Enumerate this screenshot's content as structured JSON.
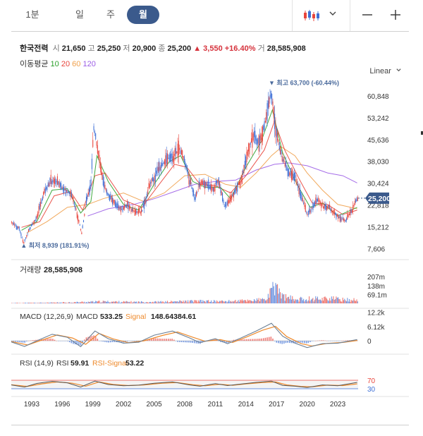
{
  "tabs": [
    {
      "label": "1분",
      "active": false
    },
    {
      "label": "일",
      "active": false
    },
    {
      "label": "주",
      "active": false
    },
    {
      "label": "월",
      "active": true
    }
  ],
  "toolbar": {
    "chart_type_icon": "candlestick-icon",
    "dropdown_icon": "chevron-down-icon",
    "zoom_out_icon": "minus-icon",
    "zoom_in_icon": "plus-icon"
  },
  "stock": {
    "name": "한국전력",
    "open_label": "시",
    "open": "21,650",
    "high_label": "고",
    "high": "25,250",
    "low_label": "저",
    "low": "20,900",
    "close_label": "종",
    "close": "25,200",
    "change": "▲ 3,550 +16.40%",
    "volume_label": "거",
    "volume": "28,585,908"
  },
  "ma_legend": {
    "label": "이동평균",
    "items": [
      {
        "period": "10",
        "color": "#2ca02c"
      },
      {
        "period": "20",
        "color": "#e8453c"
      },
      {
        "period": "60",
        "color": "#f0a04b"
      },
      {
        "period": "120",
        "color": "#9b5de5"
      }
    ]
  },
  "scale_label": "Linear",
  "colors": {
    "up": "#e8453c",
    "down": "#3d6fd6",
    "macd": "#6b7f94",
    "signal": "#ee8a2c",
    "rsi": "#555555",
    "rsi_signal": "#ee8a2c",
    "price_tag": "#3b5a8c"
  },
  "chart_data": {
    "type": "candlestick",
    "price_axis": {
      "ticks": [
        "60,848",
        "53,242",
        "45,636",
        "38,030",
        "30,424",
        "22,818",
        "15,212",
        "7,606"
      ],
      "tick_values": [
        60848,
        53242,
        45636,
        38030,
        30424,
        22818,
        15212,
        7606
      ],
      "ylim": [
        4500,
        66000
      ]
    },
    "current_price": "25,200",
    "current_value": 25200,
    "max_annotation": {
      "text": "▼ 최고 63,700 (-60.44%)",
      "value": 63700,
      "year": 2016.5
    },
    "min_annotation": {
      "text": "▲ 최저 8,939 (181.91%)",
      "value": 8939,
      "year": 1992.2
    },
    "price_path": [
      [
        1991.0,
        16800
      ],
      [
        1991.8,
        14500
      ],
      [
        1992.2,
        9500
      ],
      [
        1992.8,
        14500
      ],
      [
        1993.5,
        18500
      ],
      [
        1994.2,
        27000
      ],
      [
        1994.8,
        31000
      ],
      [
        1995.5,
        31000
      ],
      [
        1996.2,
        28000
      ],
      [
        1996.8,
        27000
      ],
      [
        1997.3,
        22000
      ],
      [
        1997.9,
        13000
      ],
      [
        1998.4,
        25000
      ],
      [
        1998.8,
        30000
      ],
      [
        1999.1,
        50000
      ],
      [
        1999.5,
        41000
      ],
      [
        1999.9,
        33000
      ],
      [
        2000.5,
        26000
      ],
      [
        2001.2,
        23000
      ],
      [
        2001.8,
        21000
      ],
      [
        2002.4,
        23000
      ],
      [
        2003.0,
        20500
      ],
      [
        2003.8,
        20500
      ],
      [
        2004.5,
        29000
      ],
      [
        2005.2,
        34000
      ],
      [
        2005.8,
        37000
      ],
      [
        2006.4,
        39000
      ],
      [
        2007.0,
        40000
      ],
      [
        2007.5,
        42500
      ],
      [
        2008.0,
        38000
      ],
      [
        2008.6,
        30000
      ],
      [
        2009.0,
        25000
      ],
      [
        2009.6,
        31000
      ],
      [
        2010.2,
        30000
      ],
      [
        2010.8,
        28000
      ],
      [
        2011.3,
        32000
      ],
      [
        2011.9,
        22000
      ],
      [
        2012.5,
        25000
      ],
      [
        2013.0,
        28000
      ],
      [
        2013.6,
        32000
      ],
      [
        2014.2,
        42000
      ],
      [
        2014.8,
        47000
      ],
      [
        2015.3,
        44000
      ],
      [
        2015.8,
        50000
      ],
      [
        2016.2,
        58000
      ],
      [
        2016.5,
        62000
      ],
      [
        2016.9,
        50000
      ],
      [
        2017.5,
        40000
      ],
      [
        2018.2,
        34000
      ],
      [
        2018.8,
        33000
      ],
      [
        2019.4,
        26000
      ],
      [
        2020.0,
        19500
      ],
      [
        2020.5,
        22000
      ],
      [
        2021.0,
        25000
      ],
      [
        2021.6,
        22000
      ],
      [
        2022.1,
        22000
      ],
      [
        2022.7,
        20000
      ],
      [
        2023.2,
        18000
      ],
      [
        2023.8,
        17500
      ],
      [
        2024.4,
        21000
      ],
      [
        2024.9,
        25200
      ]
    ],
    "ma_paths": {
      "ma10": [
        [
          1992.0,
          14000
        ],
        [
          1993.5,
          17000
        ],
        [
          1995.0,
          28000
        ],
        [
          1996.5,
          28500
        ],
        [
          1997.8,
          20000
        ],
        [
          1998.8,
          24000
        ],
        [
          1999.4,
          40000
        ],
        [
          2000.5,
          31000
        ],
        [
          2002.0,
          23000
        ],
        [
          2003.5,
          21000
        ],
        [
          2005.0,
          30000
        ],
        [
          2006.5,
          38000
        ],
        [
          2007.6,
          40000
        ],
        [
          2008.8,
          31000
        ],
        [
          2010.0,
          29000
        ],
        [
          2011.5,
          29000
        ],
        [
          2012.5,
          25000
        ],
        [
          2014.0,
          36000
        ],
        [
          2015.5,
          45000
        ],
        [
          2016.6,
          56000
        ],
        [
          2017.6,
          41000
        ],
        [
          2019.0,
          30000
        ],
        [
          2020.3,
          22000
        ],
        [
          2021.5,
          23500
        ],
        [
          2023.0,
          19000
        ],
        [
          2024.9,
          22000
        ]
      ],
      "ma20": [
        [
          1992.0,
          15000
        ],
        [
          1993.8,
          17000
        ],
        [
          1995.2,
          26000
        ],
        [
          1996.8,
          27500
        ],
        [
          1998.0,
          21000
        ],
        [
          1999.2,
          33000
        ],
        [
          2000.2,
          34000
        ],
        [
          2002.0,
          24500
        ],
        [
          2003.8,
          22000
        ],
        [
          2005.5,
          30000
        ],
        [
          2007.0,
          37000
        ],
        [
          2008.2,
          36000
        ],
        [
          2009.5,
          30000
        ],
        [
          2011.0,
          29500
        ],
        [
          2012.5,
          27000
        ],
        [
          2014.0,
          33000
        ],
        [
          2015.8,
          42000
        ],
        [
          2016.8,
          52000
        ],
        [
          2017.8,
          42000
        ],
        [
          2019.2,
          32000
        ],
        [
          2020.5,
          23500
        ],
        [
          2022.0,
          23000
        ],
        [
          2023.5,
          19500
        ],
        [
          2024.9,
          21000
        ]
      ],
      "ma60": [
        [
          1992.5,
          13000
        ],
        [
          1994.5,
          17000
        ],
        [
          1996.5,
          22000
        ],
        [
          1998.5,
          23000
        ],
        [
          2000.0,
          25000
        ],
        [
          2002.0,
          27000
        ],
        [
          2004.0,
          24000
        ],
        [
          2006.0,
          27000
        ],
        [
          2008.0,
          33000
        ],
        [
          2010.0,
          33500
        ],
        [
          2012.0,
          30000
        ],
        [
          2013.5,
          29000
        ],
        [
          2015.0,
          34000
        ],
        [
          2016.5,
          40000
        ],
        [
          2017.5,
          43000
        ],
        [
          2018.8,
          40000
        ],
        [
          2020.0,
          34000
        ],
        [
          2021.5,
          28000
        ],
        [
          2023.0,
          23000
        ],
        [
          2024.9,
          21500
        ]
      ],
      "ma120": [
        [
          1998.5,
          19000
        ],
        [
          2000.5,
          21500
        ],
        [
          2003.0,
          23000
        ],
        [
          2005.0,
          25000
        ],
        [
          2007.0,
          27500
        ],
        [
          2009.0,
          30000
        ],
        [
          2011.0,
          31000
        ],
        [
          2013.0,
          31500
        ],
        [
          2015.0,
          35000
        ],
        [
          2016.8,
          37000
        ],
        [
          2018.2,
          37500
        ],
        [
          2020.0,
          36500
        ],
        [
          2022.0,
          34000
        ],
        [
          2023.5,
          33000
        ],
        [
          2024.9,
          30500
        ]
      ]
    },
    "x_axis": {
      "labels": [
        "1993",
        "1996",
        "1999",
        "2002",
        "2005",
        "2008",
        "2011",
        "2014",
        "2017",
        "2020",
        "2023"
      ],
      "values": [
        1993,
        1996,
        1999,
        2002,
        2005,
        2008,
        2011,
        2014,
        2017,
        2020,
        2023
      ],
      "xlim": [
        1991.0,
        2025.0
      ]
    },
    "volume": {
      "label": "거래량",
      "value": "28,585,908",
      "ticks": [
        "207m",
        "138m",
        "69.1m"
      ],
      "tick_values": [
        207,
        138,
        69.1
      ],
      "ylim": [
        0,
        230
      ],
      "path": [
        [
          1991,
          3
        ],
        [
          1995,
          5
        ],
        [
          1998,
          10
        ],
        [
          2000,
          14
        ],
        [
          2003,
          11
        ],
        [
          2006,
          12
        ],
        [
          2009,
          18
        ],
        [
          2012,
          16
        ],
        [
          2014,
          22
        ],
        [
          2016,
          30
        ],
        [
          2017,
          150
        ],
        [
          2017.4,
          60
        ],
        [
          2018,
          45
        ],
        [
          2019,
          30
        ],
        [
          2020,
          35
        ],
        [
          2022,
          40
        ],
        [
          2023.6,
          28
        ],
        [
          2024.9,
          28
        ]
      ]
    },
    "macd": {
      "label": "MACD (12,26,9)",
      "macd_label": "MACD",
      "macd_value": "533.25",
      "signal_label": "Signal",
      "signal_value": "148.64384.61",
      "ticks": [
        "12.2k",
        "6.12k",
        "0"
      ],
      "tick_values": [
        12200,
        6120,
        0
      ],
      "ylim": [
        -4200,
        13000
      ],
      "macd_path": [
        [
          1991,
          -500
        ],
        [
          1992.3,
          -2400
        ],
        [
          1993.5,
          0
        ],
        [
          1995,
          2800
        ],
        [
          1996.5,
          1500
        ],
        [
          1997.8,
          -2500
        ],
        [
          1999.2,
          4200
        ],
        [
          2000.5,
          900
        ],
        [
          2002,
          -1000
        ],
        [
          2003.5,
          -600
        ],
        [
          2005,
          2400
        ],
        [
          2006.8,
          4200
        ],
        [
          2008.5,
          1200
        ],
        [
          2009.5,
          -800
        ],
        [
          2011,
          900
        ],
        [
          2012.2,
          -1200
        ],
        [
          2013.5,
          1200
        ],
        [
          2015,
          4200
        ],
        [
          2016.5,
          7500
        ],
        [
          2017.6,
          2000
        ],
        [
          2018.8,
          -1000
        ],
        [
          2020,
          -2900
        ],
        [
          2021.5,
          -1200
        ],
        [
          2023,
          -1000
        ],
        [
          2024.9,
          533
        ]
      ],
      "signal_path": [
        [
          1991,
          -300
        ],
        [
          1992.6,
          -1800
        ],
        [
          1994,
          300
        ],
        [
          1995.5,
          2500
        ],
        [
          1997,
          1200
        ],
        [
          1998.3,
          -1500
        ],
        [
          1999.6,
          3200
        ],
        [
          2001,
          800
        ],
        [
          2002.5,
          -800
        ],
        [
          2004,
          0
        ],
        [
          2005.8,
          2300
        ],
        [
          2007.3,
          3800
        ],
        [
          2008.8,
          1500
        ],
        [
          2010,
          -200
        ],
        [
          2011.5,
          500
        ],
        [
          2012.7,
          -700
        ],
        [
          2014,
          1500
        ],
        [
          2015.6,
          4500
        ],
        [
          2016.9,
          6200
        ],
        [
          2018,
          1800
        ],
        [
          2019.4,
          -1200
        ],
        [
          2020.5,
          -2200
        ],
        [
          2022,
          -1100
        ],
        [
          2023.5,
          -700
        ],
        [
          2024.9,
          149
        ]
      ]
    },
    "rsi": {
      "label": "RSI (14,9)",
      "rsi_label": "RSI",
      "rsi_value": "59.91",
      "signal_label": "RSI-Signal",
      "signal_value": "53.22",
      "ticks": [
        "70",
        "30"
      ],
      "tick_values": [
        70,
        30
      ],
      "ylim": [
        0,
        100
      ],
      "rsi_path": [
        [
          1991,
          48
        ],
        [
          1992.3,
          38
        ],
        [
          1993.5,
          55
        ],
        [
          1995,
          65
        ],
        [
          1996.5,
          58
        ],
        [
          1997.8,
          38
        ],
        [
          1999.2,
          66
        ],
        [
          2000.5,
          50
        ],
        [
          2002,
          44
        ],
        [
          2003.5,
          47
        ],
        [
          2005,
          56
        ],
        [
          2006.8,
          62
        ],
        [
          2008.5,
          48
        ],
        [
          2009.5,
          42
        ],
        [
          2011,
          54
        ],
        [
          2012.2,
          45
        ],
        [
          2013.5,
          52
        ],
        [
          2015,
          60
        ],
        [
          2016.5,
          66
        ],
        [
          2017.6,
          46
        ],
        [
          2018.8,
          42
        ],
        [
          2020,
          36
        ],
        [
          2021.5,
          48
        ],
        [
          2023,
          44
        ],
        [
          2024.9,
          60
        ]
      ],
      "signal_path": [
        [
          1991,
          49
        ],
        [
          1992.6,
          41
        ],
        [
          1994,
          53
        ],
        [
          1995.5,
          62
        ],
        [
          1997,
          56
        ],
        [
          1998.3,
          42
        ],
        [
          1999.6,
          62
        ],
        [
          2001,
          50
        ],
        [
          2002.5,
          45
        ],
        [
          2004,
          48
        ],
        [
          2005.8,
          56
        ],
        [
          2007.3,
          59
        ],
        [
          2008.8,
          49
        ],
        [
          2010,
          44
        ],
        [
          2011.5,
          51
        ],
        [
          2012.7,
          46
        ],
        [
          2014,
          53
        ],
        [
          2015.6,
          59
        ],
        [
          2016.9,
          62
        ],
        [
          2018,
          48
        ],
        [
          2019.4,
          41
        ],
        [
          2020.5,
          39
        ],
        [
          2022,
          47
        ],
        [
          2023.5,
          45
        ],
        [
          2024.9,
          53
        ]
      ]
    }
  }
}
